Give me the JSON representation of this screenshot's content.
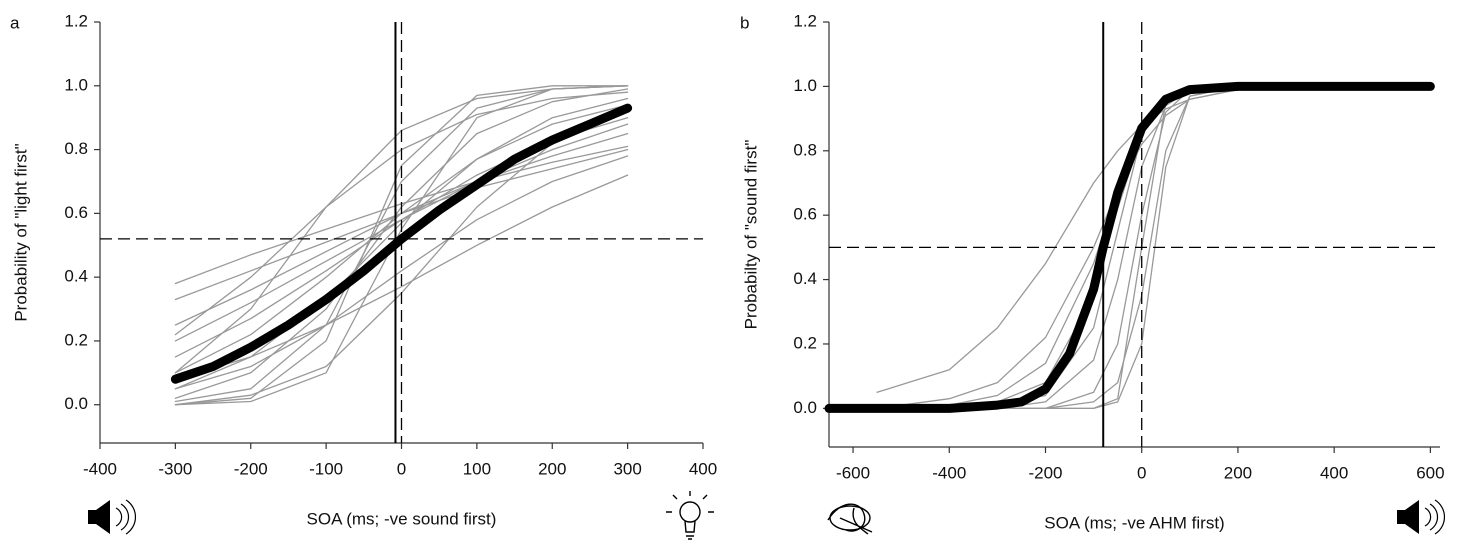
{
  "chart_data": [
    {
      "type": "line",
      "panel_label": "a",
      "x_label": "SOA (ms; -ve sound first)",
      "y_label": "Probability of \"light first\"",
      "xlim": [
        -400,
        400
      ],
      "ylim": [
        -0.12,
        1.2
      ],
      "xticks": [
        -400,
        -300,
        -200,
        -100,
        0,
        100,
        200,
        300,
        400
      ],
      "yticks": [
        {
          "value": 0,
          "label": "0.0"
        },
        0.2,
        0.4,
        0.6,
        0.8,
        {
          "value": 1,
          "label": "1.0"
        },
        1.2
      ],
      "reference_lines": [
        {
          "axis": "x",
          "value": -8,
          "style": "solid"
        },
        {
          "axis": "x",
          "value": 0,
          "style": "dashed"
        },
        {
          "axis": "y",
          "value": 0.52,
          "style": "dashed"
        }
      ],
      "series": [
        {
          "color": "#999999",
          "line_width": 1.3,
          "x": [
            -300,
            -200,
            -100,
            0,
            100,
            200,
            300
          ],
          "values": [
            0.38,
            0.47,
            0.55,
            0.63,
            0.7,
            0.76,
            0.81
          ]
        },
        {
          "color": "#999999",
          "line_width": 1.3,
          "x": [
            -300,
            -200,
            -100,
            0,
            100,
            200,
            300
          ],
          "values": [
            0.33,
            0.42,
            0.51,
            0.6,
            0.68,
            0.74,
            0.8
          ]
        },
        {
          "color": "#999999",
          "line_width": 1.3,
          "x": [
            -300,
            -200,
            -100,
            0,
            100,
            200,
            300
          ],
          "values": [
            0.25,
            0.36,
            0.48,
            0.6,
            0.7,
            0.78,
            0.85
          ]
        },
        {
          "color": "#999999",
          "line_width": 1.3,
          "x": [
            -300,
            -200,
            -100,
            0,
            100,
            200,
            300
          ],
          "values": [
            0.2,
            0.32,
            0.45,
            0.58,
            0.7,
            0.8,
            0.88
          ]
        },
        {
          "color": "#999999",
          "line_width": 1.3,
          "x": [
            -300,
            -200,
            -100,
            0,
            100,
            200,
            300
          ],
          "values": [
            0.15,
            0.27,
            0.42,
            0.58,
            0.72,
            0.83,
            0.9
          ]
        },
        {
          "color": "#999999",
          "line_width": 1.3,
          "x": [
            -300,
            -200,
            -100,
            0,
            100,
            200,
            300
          ],
          "values": [
            0.1,
            0.22,
            0.4,
            0.6,
            0.77,
            0.88,
            0.94
          ]
        },
        {
          "color": "#999999",
          "line_width": 1.3,
          "x": [
            -300,
            -200,
            -100,
            0,
            100,
            200,
            300
          ],
          "values": [
            0.05,
            0.15,
            0.33,
            0.57,
            0.77,
            0.9,
            0.96
          ]
        },
        {
          "color": "#999999",
          "line_width": 1.3,
          "x": [
            -300,
            -200,
            -100,
            0,
            100,
            200,
            300
          ],
          "values": [
            0.02,
            0.1,
            0.3,
            0.62,
            0.85,
            0.95,
            0.99
          ]
        },
        {
          "color": "#999999",
          "line_width": 1.3,
          "x": [
            -300,
            -200,
            -100,
            0,
            100,
            200,
            300
          ],
          "values": [
            0.01,
            0.05,
            0.25,
            0.7,
            0.93,
            0.99,
            1
          ]
        },
        {
          "color": "#999999",
          "line_width": 1.3,
          "x": [
            -300,
            -200,
            -100,
            0,
            100,
            200,
            300
          ],
          "values": [
            0,
            0.02,
            0.2,
            0.75,
            0.97,
            1,
            1
          ]
        },
        {
          "color": "#999999",
          "line_width": 1.3,
          "x": [
            -300,
            -200,
            -100,
            0,
            100,
            200,
            300
          ],
          "values": [
            0,
            0.01,
            0.1,
            0.55,
            0.9,
            0.99,
            1
          ]
        },
        {
          "color": "#999999",
          "line_width": 1.3,
          "x": [
            -300,
            -200,
            -100,
            0,
            100,
            200,
            300
          ],
          "values": [
            0.05,
            0.12,
            0.25,
            0.42,
            0.58,
            0.7,
            0.78
          ]
        },
        {
          "color": "#999999",
          "line_width": 1.3,
          "x": [
            -300,
            -200,
            -100,
            0,
            100,
            200,
            300
          ],
          "values": [
            0.08,
            0.15,
            0.25,
            0.37,
            0.5,
            0.62,
            0.72
          ]
        },
        {
          "color": "#999999",
          "line_width": 1.3,
          "x": [
            -300,
            -200,
            -100,
            0,
            100,
            200,
            300
          ],
          "values": [
            0,
            0.03,
            0.12,
            0.35,
            0.62,
            0.82,
            0.93
          ]
        },
        {
          "color": "#999999",
          "line_width": 1.3,
          "x": [
            -300,
            -200,
            -100,
            0,
            100,
            200,
            300
          ],
          "values": [
            0.22,
            0.4,
            0.62,
            0.8,
            0.91,
            0.96,
            0.98
          ]
        },
        {
          "color": "#999999",
          "line_width": 1.3,
          "x": [
            -300,
            -200,
            -100,
            0,
            100,
            200,
            300
          ],
          "values": [
            0.1,
            0.3,
            0.62,
            0.86,
            0.96,
            0.99,
            1
          ]
        },
        {
          "color": "#000000",
          "line_width": 9,
          "x": [
            -300,
            -250,
            -200,
            -150,
            -100,
            -50,
            0,
            50,
            100,
            150,
            200,
            250,
            300
          ],
          "values": [
            0.08,
            0.12,
            0.18,
            0.25,
            0.33,
            0.42,
            0.52,
            0.61,
            0.69,
            0.77,
            0.83,
            0.88,
            0.93
          ]
        }
      ]
    },
    {
      "type": "line",
      "panel_label": "b",
      "x_label": "SOA (ms; -ve AHM first)",
      "y_label": "Probabilty of \"sound first\"",
      "xlim": [
        -650,
        620
      ],
      "ylim": [
        -0.12,
        1.2
      ],
      "xticks": [
        -600,
        -400,
        -200,
        0,
        200,
        400,
        600
      ],
      "yticks": [
        {
          "value": 0,
          "label": "0.0"
        },
        0.2,
        0.4,
        0.6,
        0.8,
        {
          "value": 1,
          "label": "1.0"
        },
        1.2
      ],
      "reference_lines": [
        {
          "axis": "x",
          "value": -80,
          "style": "solid"
        },
        {
          "axis": "x",
          "value": 0,
          "style": "dashed"
        },
        {
          "axis": "y",
          "value": 0.5,
          "style": "dashed"
        }
      ],
      "series": [
        {
          "color": "#999999",
          "line_width": 1.3,
          "x": [
            -550,
            -400,
            -300,
            -200,
            -100,
            -50,
            0,
            50,
            100,
            200,
            300
          ],
          "values": [
            0.05,
            0.12,
            0.25,
            0.45,
            0.7,
            0.8,
            0.88,
            0.93,
            0.96,
            0.99,
            1
          ]
        },
        {
          "color": "#999999",
          "line_width": 1.3,
          "x": [
            -550,
            -400,
            -300,
            -200,
            -100,
            -50,
            0,
            50,
            100,
            200,
            300
          ],
          "values": [
            0,
            0.03,
            0.08,
            0.22,
            0.5,
            0.68,
            0.82,
            0.91,
            0.96,
            0.99,
            1
          ]
        },
        {
          "color": "#999999",
          "line_width": 1.3,
          "x": [
            -550,
            -400,
            -300,
            -200,
            -100,
            -50,
            0,
            50,
            100,
            200,
            300
          ],
          "values": [
            null,
            0.01,
            0.04,
            0.14,
            0.45,
            0.68,
            0.86,
            0.95,
            0.98,
            1,
            1
          ]
        },
        {
          "color": "#999999",
          "line_width": 1.3,
          "x": [
            -550,
            -400,
            -300,
            -200,
            -100,
            -50,
            0,
            50,
            100,
            200,
            300
          ],
          "values": [
            null,
            0,
            0.02,
            0.08,
            0.35,
            0.62,
            0.85,
            0.95,
            0.99,
            1,
            1
          ]
        },
        {
          "color": "#999999",
          "line_width": 1.3,
          "x": [
            -550,
            -400,
            -300,
            -200,
            -100,
            -50,
            0,
            50,
            100,
            200,
            300
          ],
          "values": [
            null,
            0,
            0.01,
            0.04,
            0.25,
            0.55,
            0.85,
            0.97,
            1,
            1,
            1
          ]
        },
        {
          "color": "#999999",
          "line_width": 1.3,
          "x": [
            -550,
            -400,
            -300,
            -200,
            -100,
            -50,
            0,
            50,
            100,
            200,
            300
          ],
          "values": [
            null,
            null,
            0,
            0.02,
            0.15,
            0.4,
            0.75,
            0.94,
            0.99,
            1,
            1
          ]
        },
        {
          "color": "#999999",
          "line_width": 1.3,
          "x": [
            -550,
            -400,
            -300,
            -200,
            -100,
            -50,
            0,
            50,
            100,
            200,
            300
          ],
          "values": [
            null,
            null,
            0,
            0,
            0.05,
            0.2,
            0.6,
            0.92,
            0.99,
            1,
            1
          ]
        },
        {
          "color": "#999999",
          "line_width": 1.3,
          "x": [
            -550,
            -400,
            -300,
            -200,
            -100,
            -50,
            0,
            50,
            100,
            200,
            300
          ],
          "values": [
            null,
            null,
            0,
            0,
            0.02,
            0.08,
            0.35,
            0.8,
            0.97,
            1,
            1
          ]
        },
        {
          "color": "#999999",
          "line_width": 1.3,
          "x": [
            -550,
            -400,
            -300,
            -200,
            -100,
            -50,
            0,
            50,
            100,
            200,
            300
          ],
          "values": [
            null,
            null,
            0,
            0,
            0,
            0.02,
            0.2,
            0.75,
            0.97,
            1,
            1
          ]
        },
        {
          "color": "#999999",
          "line_width": 1.3,
          "x": [
            -550,
            -400,
            -300,
            -200,
            -100,
            -50,
            0,
            50,
            100,
            200,
            300
          ],
          "values": [
            null,
            null,
            null,
            0,
            0,
            0.03,
            0.5,
            0.95,
            1,
            1,
            1
          ]
        },
        {
          "color": "#000000",
          "line_width": 9,
          "x": [
            -650,
            -400,
            -300,
            -250,
            -200,
            -150,
            -100,
            -80,
            -50,
            0,
            50,
            100,
            200,
            400,
            600
          ],
          "values": [
            0,
            0,
            0.01,
            0.02,
            0.06,
            0.17,
            0.37,
            0.5,
            0.67,
            0.87,
            0.96,
            0.99,
            1,
            1,
            1
          ]
        }
      ]
    }
  ]
}
